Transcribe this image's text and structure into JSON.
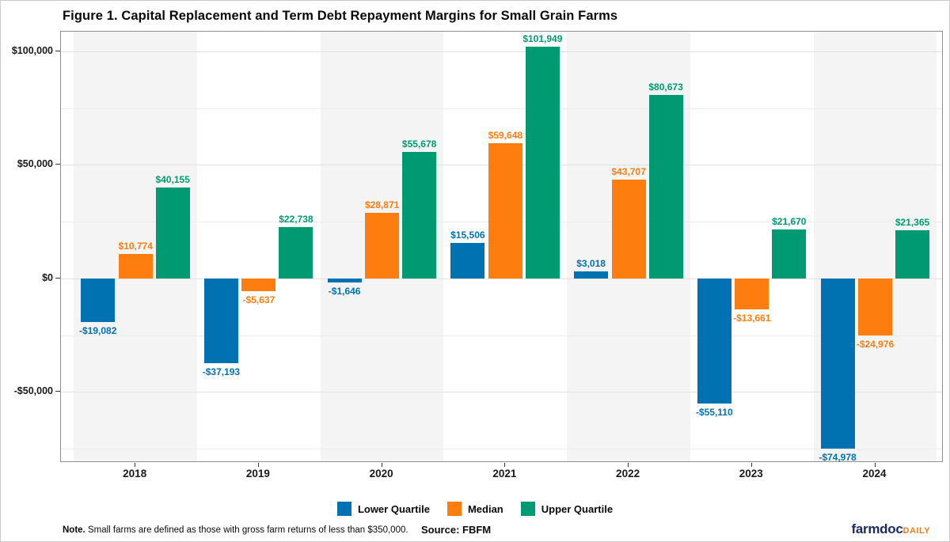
{
  "title": "Figure 1. Capital Replacement and Term Debt Repayment Margins for Small Grain Farms",
  "chart_data": {
    "type": "bar",
    "title": "Figure 1. Capital Replacement and Term Debt Repayment Margins for Small Grain Farms",
    "categories": [
      "2018",
      "2019",
      "2020",
      "2021",
      "2022",
      "2023",
      "2024"
    ],
    "series": [
      {
        "name": "Lower Quartile",
        "color": "#0072b2",
        "values": [
          -19082,
          -37193,
          -1646,
          15506,
          3018,
          -55110,
          -74978
        ],
        "labels": [
          "-$19,082",
          "-$37,193",
          "-$1,646",
          "$15,506",
          "$3,018",
          "-$55,110",
          "-$74,978"
        ]
      },
      {
        "name": "Median",
        "color": "#fd7e0e",
        "values": [
          10774,
          -5637,
          28871,
          59648,
          43707,
          -13661,
          -24976
        ],
        "labels": [
          "$10,774",
          "-$5,637",
          "$28,871",
          "$59,648",
          "$43,707",
          "-$13,661",
          "-$24,976"
        ]
      },
      {
        "name": "Upper Quartile",
        "color": "#009a72",
        "values": [
          40155,
          22738,
          55678,
          101949,
          80673,
          21670,
          21365
        ],
        "labels": [
          "$40,155",
          "$22,738",
          "$55,678",
          "$101,949",
          "$80,673",
          "$21,670",
          "$21,365"
        ]
      }
    ],
    "y_axis": {
      "ticks": [
        {
          "label": "$100,000",
          "value": 100000
        },
        {
          "label": "$50,000",
          "value": 50000
        },
        {
          "label": "$0",
          "value": 0
        },
        {
          "label": "-$50,000",
          "value": -50000
        }
      ],
      "minor_ticks": [
        75000,
        25000,
        -25000,
        -75000
      ],
      "ylim": [
        -81200,
        108700
      ]
    },
    "legend_position": "bottom",
    "grid": true,
    "band_color": "#f4f4f5"
  },
  "footer": {
    "note_label": "Note.",
    "note_text": " Small farms are defined as those with gross farm returns of less than $350,000.",
    "source": "Source: FBFM",
    "logo_main": "farmdoc",
    "logo_suffix": "DAILY"
  }
}
